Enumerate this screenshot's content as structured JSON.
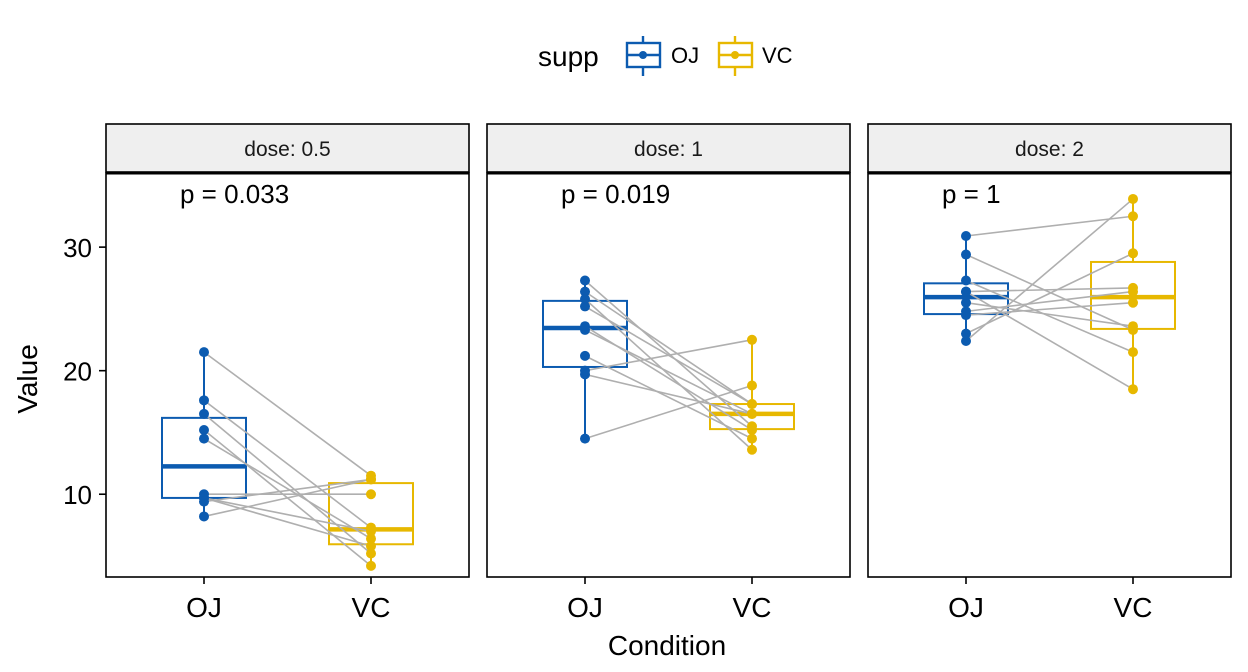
{
  "chart_data": {
    "type": "boxplot",
    "legend": {
      "title": "supp",
      "position": "top",
      "entries": [
        {
          "name": "OJ",
          "color": "#0C5BB0"
        },
        {
          "name": "VC",
          "color": "#E7B800"
        }
      ]
    },
    "xlabel": "Condition",
    "ylabel": "Value",
    "ylim": [
      3.3,
      36.0
    ],
    "yticks": [
      10,
      20,
      30
    ],
    "categories": [
      "OJ",
      "VC"
    ],
    "paired_line_color": "#AFAFAF",
    "panels": [
      {
        "strip": "dose: 0.5",
        "p_label": "p = 0.033",
        "boxes": {
          "OJ": {
            "q1": 9.7,
            "median": 12.25,
            "q3": 16.18,
            "min": 8.2,
            "max": 21.5
          },
          "VC": {
            "q1": 5.95,
            "median": 7.15,
            "q3": 10.9,
            "min": 4.2,
            "max": 11.5
          }
        },
        "pairs": [
          [
            15.2,
            4.2
          ],
          [
            21.5,
            11.5
          ],
          [
            17.6,
            7.3
          ],
          [
            9.7,
            5.8
          ],
          [
            14.5,
            6.4
          ],
          [
            10.0,
            10.0
          ],
          [
            8.2,
            11.2
          ],
          [
            9.4,
            11.2
          ],
          [
            16.5,
            5.2
          ],
          [
            9.7,
            7.0
          ]
        ]
      },
      {
        "strip": "dose: 1",
        "p_label": "p = 0.019",
        "boxes": {
          "OJ": {
            "q1": 20.3,
            "median": 23.45,
            "q3": 25.65,
            "min": 14.5,
            "max": 27.3
          },
          "VC": {
            "q1": 15.27,
            "median": 16.5,
            "q3": 17.3,
            "min": 13.6,
            "max": 22.5
          }
        },
        "pairs": [
          [
            19.7,
            16.5
          ],
          [
            23.3,
            16.5
          ],
          [
            23.6,
            15.2
          ],
          [
            26.4,
            17.3
          ],
          [
            20.0,
            22.5
          ],
          [
            25.2,
            17.3
          ],
          [
            25.8,
            13.6
          ],
          [
            21.2,
            14.5
          ],
          [
            14.5,
            18.8
          ],
          [
            27.3,
            15.5
          ]
        ]
      },
      {
        "strip": "dose: 2",
        "p_label": "p = 1",
        "boxes": {
          "OJ": {
            "q1": 24.58,
            "median": 25.95,
            "q3": 27.07,
            "min": 22.4,
            "max": 30.9
          },
          "VC": {
            "q1": 23.38,
            "median": 25.95,
            "q3": 28.8,
            "min": 18.5,
            "max": 33.9
          }
        },
        "pairs": [
          [
            25.5,
            23.6
          ],
          [
            26.4,
            18.5
          ],
          [
            22.4,
            33.9
          ],
          [
            24.5,
            25.5
          ],
          [
            24.8,
            26.4
          ],
          [
            30.9,
            32.5
          ],
          [
            26.4,
            26.7
          ],
          [
            27.3,
            21.5
          ],
          [
            29.4,
            23.3
          ],
          [
            23.0,
            29.5
          ]
        ]
      }
    ]
  }
}
